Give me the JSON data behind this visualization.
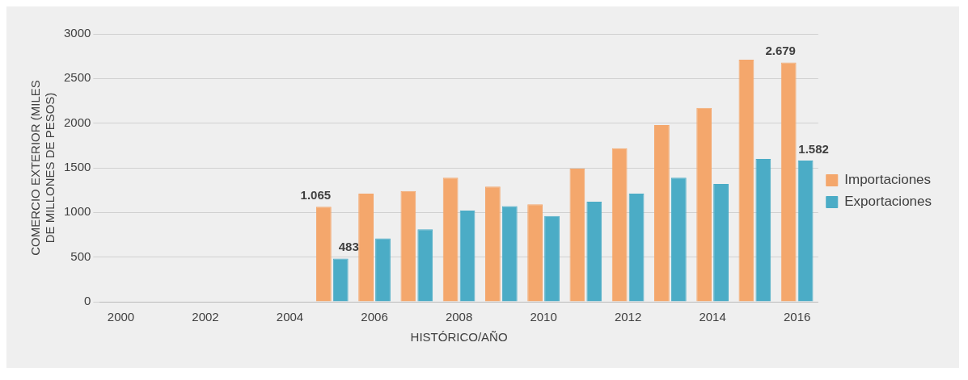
{
  "chart_data": {
    "type": "bar",
    "xlabel": "HISTÓRICO/AÑO",
    "ylabel": "COMERCIO EXTERIOR (MILES DE MILLONES DE PESOS)",
    "categories": [
      "2000",
      null,
      "2002",
      null,
      "2004",
      null,
      "2006",
      null,
      "2008",
      null,
      "2010",
      null,
      "2012",
      null,
      "2014",
      null,
      "2016"
    ],
    "series": [
      {
        "name": "Importaciones",
        "color": "#f4a76c",
        "values": [
          null,
          null,
          null,
          null,
          null,
          1065,
          1210,
          1240,
          1390,
          1290,
          1090,
          1490,
          1720,
          1980,
          2170,
          2710,
          2679
        ],
        "value_labels": [
          null,
          null,
          null,
          null,
          null,
          "1.065",
          null,
          null,
          null,
          null,
          null,
          null,
          null,
          null,
          null,
          null,
          "2.679"
        ]
      },
      {
        "name": "Exportaciones",
        "color": "#4bacc6",
        "values": [
          null,
          null,
          null,
          null,
          null,
          483,
          710,
          810,
          1020,
          1070,
          960,
          1120,
          1210,
          1390,
          1320,
          1600,
          1582
        ],
        "value_labels": [
          null,
          null,
          null,
          null,
          null,
          "483",
          null,
          null,
          null,
          null,
          null,
          null,
          null,
          null,
          null,
          null,
          "1.582"
        ]
      }
    ],
    "ylim": [
      0,
      3000
    ],
    "yticks": [
      0,
      500,
      1000,
      1500,
      2000,
      2500,
      3000
    ],
    "grid": "y",
    "legend": "right"
  }
}
